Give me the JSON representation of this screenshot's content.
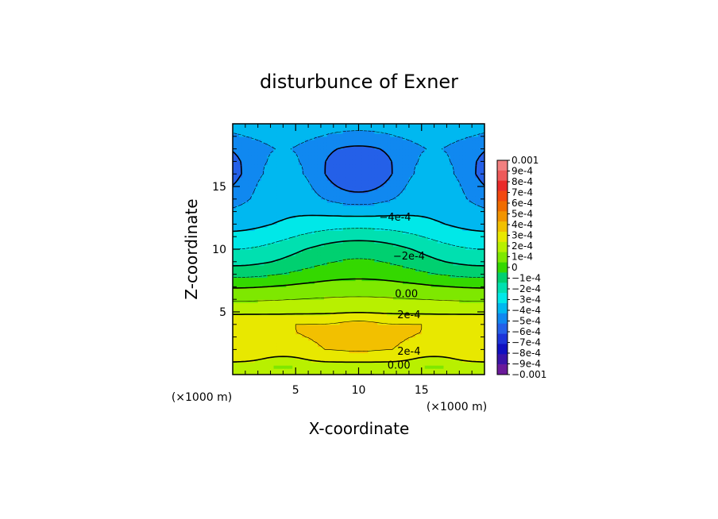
{
  "chart_data": {
    "type": "heatmap",
    "title": "disturbunce of Exner",
    "xlabel": "X-coordinate",
    "ylabel": "Z-coordinate",
    "x_unit": "(×1000 m)",
    "y_unit": "(×1000 m)",
    "xlim": [
      0,
      20
    ],
    "ylim": [
      0,
      20
    ],
    "x_ticks": [
      5,
      10,
      15
    ],
    "y_ticks": [
      5,
      10,
      15
    ],
    "z_range": [
      -0.001,
      0.001
    ],
    "z_step": 0.0001,
    "colorbar_labels": [
      "0.001",
      "9e-4",
      "8e-4",
      "7e-4",
      "6e-4",
      "5e-4",
      "4e-4",
      "3e-4",
      "2e-4",
      "1e-4",
      "0",
      "−1e-4",
      "−2e-4",
      "−3e-4",
      "−4e-4",
      "−5e-4",
      "−6e-4",
      "−7e-4",
      "−8e-4",
      "−9e-4",
      "−0.001"
    ],
    "colorbar_colors": [
      "#f28080",
      "#ee5a5a",
      "#ea2a2a",
      "#f24810",
      "#f06c00",
      "#f29400",
      "#f2c000",
      "#e8e800",
      "#b8f000",
      "#7ee800",
      "#34d800",
      "#00d070",
      "#00e0b0",
      "#00e8e8",
      "#00b8f0",
      "#1088f0",
      "#2460e8",
      "#1c34d8",
      "#1010c0",
      "#3a14a8",
      "#6a1a9a"
    ],
    "z_profile": [
      [
        0,
        0.0002
      ],
      [
        0.5,
        0.0001
      ],
      [
        1,
        0.0002
      ],
      [
        2,
        0.0003
      ],
      [
        3,
        0.0003
      ],
      [
        4,
        0.0003
      ],
      [
        5,
        0.00018
      ],
      [
        6,
        0.0001
      ],
      [
        7,
        2e-05
      ],
      [
        8,
        -8e-05
      ],
      [
        9,
        -0.00016
      ],
      [
        10,
        -0.00022
      ],
      [
        11,
        -0.0003
      ],
      [
        12,
        -0.00038
      ],
      [
        13,
        -0.00044
      ],
      [
        14,
        -0.0005
      ],
      [
        15,
        -0.00054
      ],
      [
        16,
        -0.00058
      ],
      [
        17,
        -0.00058
      ],
      [
        18,
        -0.00056
      ],
      [
        19,
        -0.0005
      ],
      [
        20,
        -0.00046
      ]
    ],
    "contour_labels": [
      {
        "text": "−4e-4",
        "x": 12.9,
        "z": 12.6
      },
      {
        "text": "−2e-4",
        "x": 14.0,
        "z": 9.5
      },
      {
        "text": "0.00",
        "x": 13.8,
        "z": 6.5
      },
      {
        "text": "2e-4",
        "x": 14.0,
        "z": 4.8
      },
      {
        "text": "2e-4",
        "x": 14.0,
        "z": 1.9
      },
      {
        "text": "0.00",
        "x": 13.2,
        "z": 0.8
      }
    ]
  }
}
